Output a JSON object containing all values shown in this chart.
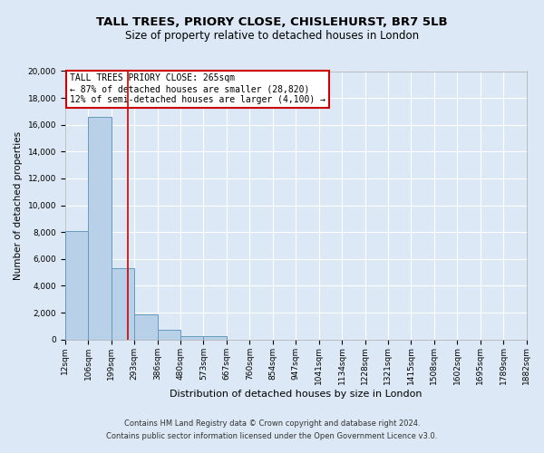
{
  "title": "TALL TREES, PRIORY CLOSE, CHISLEHURST, BR7 5LB",
  "subtitle": "Size of property relative to detached houses in London",
  "xlabel": "Distribution of detached houses by size in London",
  "ylabel": "Number of detached properties",
  "bin_labels": [
    "12sqm",
    "106sqm",
    "199sqm",
    "293sqm",
    "386sqm",
    "480sqm",
    "573sqm",
    "667sqm",
    "760sqm",
    "854sqm",
    "947sqm",
    "1041sqm",
    "1134sqm",
    "1228sqm",
    "1321sqm",
    "1415sqm",
    "1508sqm",
    "1602sqm",
    "1695sqm",
    "1789sqm",
    "1882sqm"
  ],
  "bar_heights": [
    8100,
    16600,
    5300,
    1850,
    750,
    275,
    275,
    0,
    0,
    0,
    0,
    0,
    0,
    0,
    0,
    0,
    0,
    0,
    0,
    0
  ],
  "bar_color": "#b8d0e8",
  "bar_edge_color": "#6699bb",
  "property_line_x": 265,
  "ylim": [
    0,
    20000
  ],
  "yticks": [
    0,
    2000,
    4000,
    6000,
    8000,
    10000,
    12000,
    14000,
    16000,
    18000,
    20000
  ],
  "annotation_title": "TALL TREES PRIORY CLOSE: 265sqm",
  "annotation_line1": "← 87% of detached houses are smaller (28,820)",
  "annotation_line2": "12% of semi-detached houses are larger (4,100) →",
  "annotation_box_color": "#ffffff",
  "annotation_box_edge": "#cc0000",
  "footer1": "Contains HM Land Registry data © Crown copyright and database right 2024.",
  "footer2": "Contains public sector information licensed under the Open Government Licence v3.0.",
  "bg_color": "#dce8f5",
  "plot_bg_color": "#dce8f5",
  "grid_color": "#ffffff",
  "red_line_color": "#cc0000",
  "num_bins": 20,
  "title_fontsize": 9.5,
  "subtitle_fontsize": 8.5,
  "ylabel_fontsize": 7.5,
  "xlabel_fontsize": 8,
  "tick_fontsize": 6.5,
  "annotation_fontsize": 7,
  "footer_fontsize": 6
}
